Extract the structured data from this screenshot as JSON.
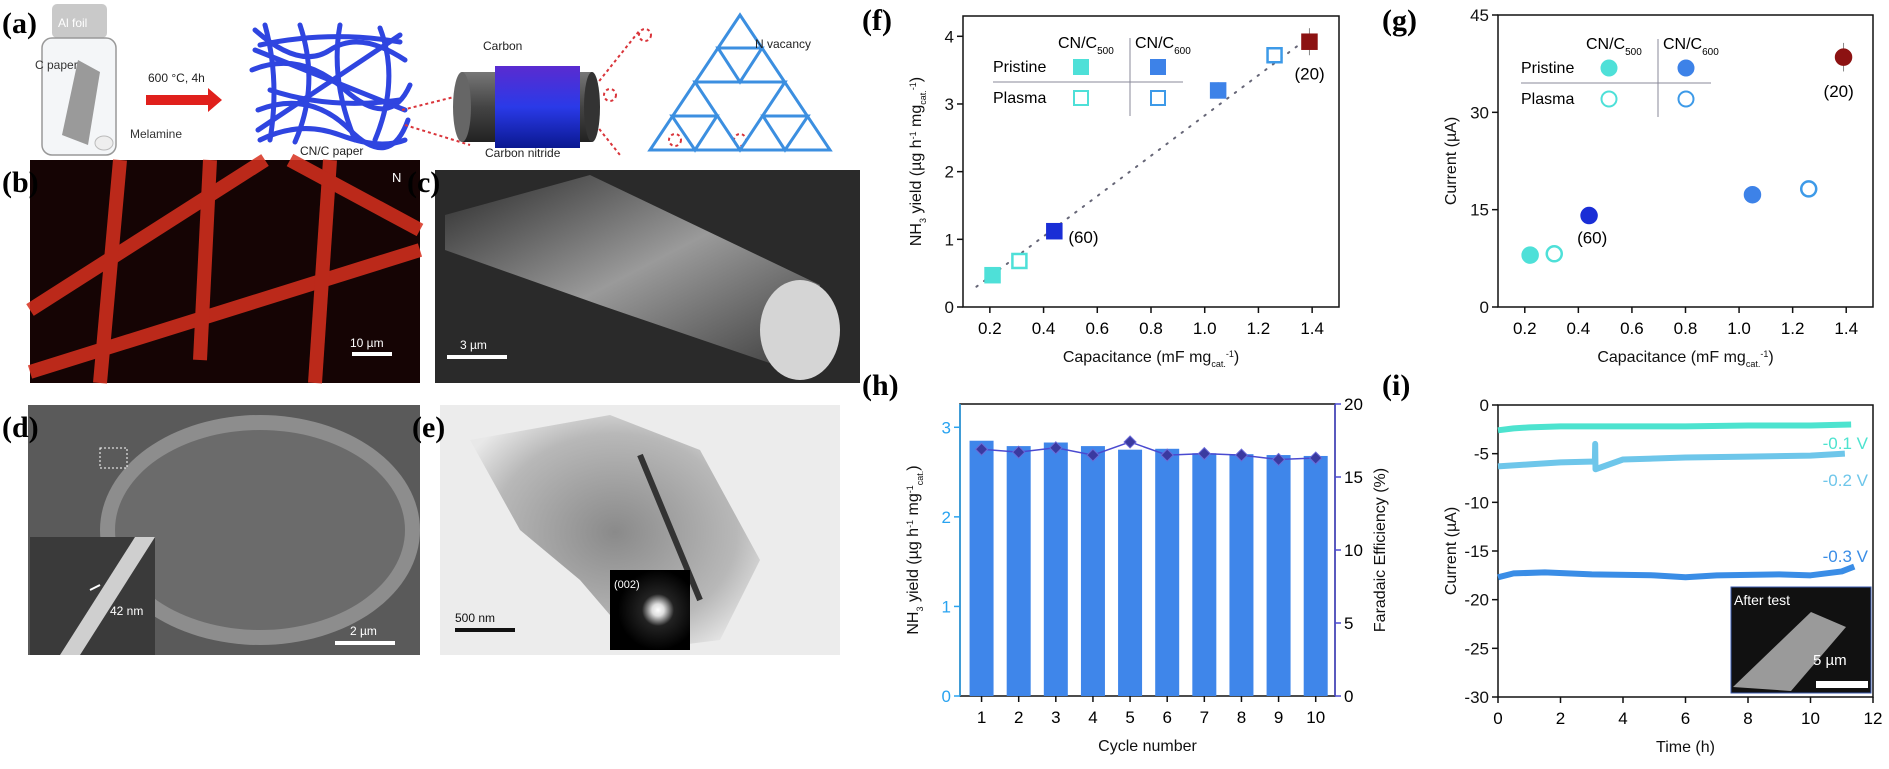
{
  "panel_labels": [
    "(a)",
    "(b)",
    "(c)",
    "(d)",
    "(e)",
    "(f)",
    "(g)",
    "(h)",
    "(i)"
  ],
  "schematic": {
    "al_foil": "Al foil",
    "c_paper": "C paper",
    "melamine": "Melamine",
    "condition": "600 °C, 4h",
    "cn_c_paper": "CN/C paper",
    "carbon": "Carbon",
    "carbon_nitride": "Carbon nitride",
    "n_vacancy": "N vacancy",
    "colors": {
      "arrow": "#e0201c",
      "fiber": "#2f45e0",
      "highlight": "#d9343a"
    }
  },
  "micrographs": {
    "b": {
      "element_label": "N",
      "scale": "10 µm"
    },
    "c": {
      "scale": "3 µm"
    },
    "d": {
      "scale": "2 µm",
      "inset_thickness": "42 nm"
    },
    "e": {
      "scale": "500 nm",
      "diffraction": "(002)"
    }
  },
  "chart_data": [
    {
      "panel": "f",
      "type": "scatter",
      "xlabel": [
        {
          "t": "Capacitance (mF mg"
        },
        {
          "t": "cat.",
          "s": "sub"
        },
        {
          "t": "-1",
          "s": "sup"
        },
        {
          "t": ")"
        }
      ],
      "ylabel": [
        {
          "t": "NH"
        },
        {
          "t": "3",
          "s": "sub"
        },
        {
          "t": " yield (µg h"
        },
        {
          "t": "-1",
          "s": "sup"
        },
        {
          "t": " mg"
        },
        {
          "t": "cat.",
          "s": "sub"
        },
        {
          "t": "-1",
          "s": "sup"
        },
        {
          "t": ")"
        }
      ],
      "xlim": [
        0.1,
        1.5
      ],
      "ylim": [
        0,
        4.3
      ],
      "xticks": [
        "0.2",
        "0.4",
        "0.6",
        "0.8",
        "1.0",
        "1.2",
        "1.4"
      ],
      "yticks": [
        "0",
        "1",
        "2",
        "3",
        "4"
      ],
      "marker": "square",
      "legend": {
        "columns": [
          {
            "t": "CN/C",
            "s": "500"
          },
          {
            "t": "CN/C",
            "s": "600"
          }
        ],
        "rows": [
          "Pristine",
          "Plasma"
        ],
        "placement": "top-left"
      },
      "points": [
        {
          "x": 0.21,
          "y": 0.47,
          "err": 0.06,
          "fill": true,
          "color": "#4ee0d8"
        },
        {
          "x": 0.31,
          "y": 0.68,
          "err": 0.06,
          "fill": false,
          "color": "#4ee0d8"
        },
        {
          "x": 0.44,
          "y": 1.12,
          "err": 0.08,
          "fill": true,
          "color": "#1a2ed6",
          "label": "(60)"
        },
        {
          "x": 1.05,
          "y": 3.2,
          "err": 0.12,
          "fill": true,
          "color": "#3d82e8"
        },
        {
          "x": 1.26,
          "y": 3.72,
          "err": 0.08,
          "fill": false,
          "color": "#3d9ae8"
        },
        {
          "x": 1.39,
          "y": 3.92,
          "err": 0.2,
          "fill": true,
          "color": "#8c1212",
          "label": "(20)"
        }
      ],
      "fit_line": {
        "x": [
          0.15,
          1.4
        ],
        "y": [
          0.3,
          4.02
        ]
      }
    },
    {
      "panel": "g",
      "type": "scatter",
      "xlabel": [
        {
          "t": "Capacitance (mF mg"
        },
        {
          "t": "cat.",
          "s": "sub"
        },
        {
          "t": "-1",
          "s": "sup"
        },
        {
          "t": ")"
        }
      ],
      "ylabel": [
        {
          "t": "Current (µA)"
        }
      ],
      "xlim": [
        0.1,
        1.5
      ],
      "ylim": [
        0,
        45
      ],
      "xticks": [
        "0.2",
        "0.4",
        "0.6",
        "0.8",
        "1.0",
        "1.2",
        "1.4"
      ],
      "yticks": [
        "0",
        "15",
        "30",
        "45"
      ],
      "marker": "circle",
      "legend": {
        "columns": [
          {
            "t": "CN/C",
            "s": "500"
          },
          {
            "t": "CN/C",
            "s": "600"
          }
        ],
        "rows": [
          "Pristine",
          "Plasma"
        ],
        "placement": "top-left"
      },
      "points": [
        {
          "x": 0.22,
          "y": 8.0,
          "err": 0.8,
          "fill": true,
          "color": "#4ee0d8"
        },
        {
          "x": 0.31,
          "y": 8.2,
          "err": 0.8,
          "fill": false,
          "color": "#4ee0d8"
        },
        {
          "x": 0.44,
          "y": 14.1,
          "err": 0.6,
          "fill": true,
          "color": "#1a2ed6",
          "label": "(60)"
        },
        {
          "x": 1.05,
          "y": 17.3,
          "err": 0.8,
          "fill": true,
          "color": "#3d82e8"
        },
        {
          "x": 1.26,
          "y": 18.2,
          "err": 0.8,
          "fill": false,
          "color": "#3d9ae8"
        },
        {
          "x": 1.39,
          "y": 38.5,
          "err": 2.2,
          "fill": true,
          "color": "#8c1212",
          "label": "(20)"
        }
      ]
    },
    {
      "panel": "h",
      "type": "bar",
      "xlabel": [
        {
          "t": "Cycle number"
        }
      ],
      "ylabel": [
        {
          "t": "NH"
        },
        {
          "t": "3",
          "s": "sub"
        },
        {
          "t": " yield (µg h"
        },
        {
          "t": "-1",
          "s": "sup"
        },
        {
          "t": " mg"
        },
        {
          "t": "-1",
          "s": "sup"
        },
        {
          "t": "cat.",
          "s": "sub"
        },
        {
          "t": ")"
        }
      ],
      "y2label": [
        {
          "t": "Faradaic Efficiency (%)"
        }
      ],
      "categories": [
        "1",
        "2",
        "3",
        "4",
        "5",
        "6",
        "7",
        "8",
        "9",
        "10"
      ],
      "ylim": [
        0,
        3.26
      ],
      "y2lim": [
        0,
        20
      ],
      "yticks": [
        "0",
        "1",
        "2",
        "3"
      ],
      "y2ticks": [
        "0",
        "5",
        "10",
        "15",
        "20"
      ],
      "series": [
        {
          "axis": "left",
          "kind": "bar",
          "color": "#3f86ea",
          "values": [
            2.85,
            2.79,
            2.83,
            2.79,
            2.75,
            2.76,
            2.71,
            2.7,
            2.69,
            2.68
          ]
        },
        {
          "axis": "right",
          "kind": "line",
          "color": "#4a4ad0",
          "values": [
            16.9,
            16.7,
            17.0,
            16.5,
            17.4,
            16.5,
            16.6,
            16.5,
            16.2,
            16.3
          ]
        }
      ],
      "left_axis_color": "#29a3f0",
      "right_axis_color": "#4a4ad0"
    },
    {
      "panel": "i",
      "type": "line",
      "xlabel": [
        {
          "t": "Time (h)"
        }
      ],
      "ylabel": [
        {
          "t": "Current (µA)"
        }
      ],
      "xlim": [
        0,
        12
      ],
      "ylim": [
        -30,
        0
      ],
      "xticks": [
        "0",
        "2",
        "4",
        "6",
        "8",
        "10",
        "12"
      ],
      "yticks": [
        "0",
        "-5",
        "-10",
        "-15",
        "-20",
        "-25",
        "-30"
      ],
      "series": [
        {
          "name": "-0.1 V",
          "color": "#4de3cf",
          "x": [
            0,
            0.5,
            1,
            2,
            4,
            6,
            8,
            10,
            11.3
          ],
          "y": [
            -2.6,
            -2.4,
            -2.3,
            -2.2,
            -2.2,
            -2.2,
            -2.1,
            -2.1,
            -2.0
          ]
        },
        {
          "name": "-0.2 V",
          "color": "#6ec6ea",
          "x": [
            0,
            1,
            2,
            3.1,
            3.11,
            3.12,
            4,
            6,
            8,
            10,
            11.1
          ],
          "y": [
            -6.3,
            -6.1,
            -5.9,
            -5.8,
            -4.0,
            -6.6,
            -5.6,
            -5.4,
            -5.3,
            -5.2,
            -5.0
          ]
        },
        {
          "name": "-0.3 V",
          "color": "#3a8de6",
          "x": [
            0,
            0.5,
            1.5,
            3,
            5,
            6,
            7,
            9,
            10,
            11,
            11.4
          ],
          "y": [
            -17.7,
            -17.3,
            -17.2,
            -17.4,
            -17.5,
            -17.7,
            -17.5,
            -17.4,
            -17.5,
            -17.1,
            -16.6
          ]
        }
      ],
      "inset": {
        "label": "After test",
        "scale": "5 µm"
      }
    }
  ]
}
